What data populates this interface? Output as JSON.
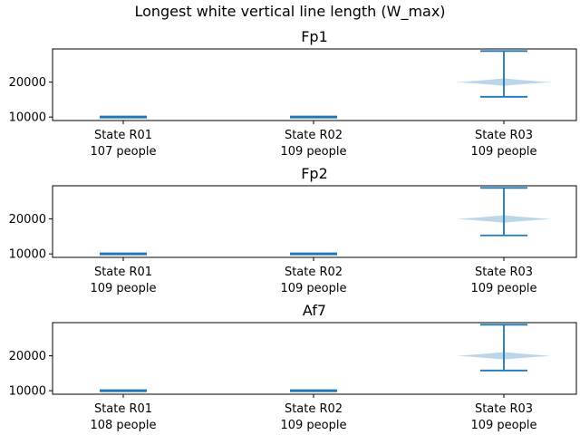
{
  "chart_data": {
    "type": "violin",
    "title": "Longest white vertical line length (W_max)",
    "categories": [
      "State R01",
      "State R02",
      "State R03"
    ],
    "colors": {
      "line": "#1f77b4",
      "body": "#1f77b4"
    },
    "panels": [
      {
        "title": "Fp1",
        "ylim": [
          9000,
          29500
        ],
        "yticks": [
          10000,
          20000
        ],
        "counts": [
          "107 people",
          "109 people",
          "109 people"
        ],
        "groups": [
          {
            "min": 10000,
            "max": 10000,
            "peak": 10000
          },
          {
            "min": 10000,
            "max": 10000,
            "peak": 10000
          },
          {
            "min": 15800,
            "max": 28900,
            "peak": 20000
          }
        ]
      },
      {
        "title": "Fp2",
        "ylim": [
          9000,
          29500
        ],
        "yticks": [
          10000,
          20000
        ],
        "counts": [
          "109 people",
          "109 people",
          "109 people"
        ],
        "groups": [
          {
            "min": 10000,
            "max": 10000,
            "peak": 10000
          },
          {
            "min": 10000,
            "max": 10000,
            "peak": 10000
          },
          {
            "min": 15300,
            "max": 28900,
            "peak": 20000
          }
        ]
      },
      {
        "title": "Af7",
        "ylim": [
          9000,
          29500
        ],
        "yticks": [
          10000,
          20000
        ],
        "counts": [
          "108 people",
          "109 people",
          "109 people"
        ],
        "groups": [
          {
            "min": 10000,
            "max": 10000,
            "peak": 10000
          },
          {
            "min": 10000,
            "max": 10000,
            "peak": 10000
          },
          {
            "min": 15800,
            "max": 28900,
            "peak": 20000
          }
        ]
      }
    ]
  }
}
